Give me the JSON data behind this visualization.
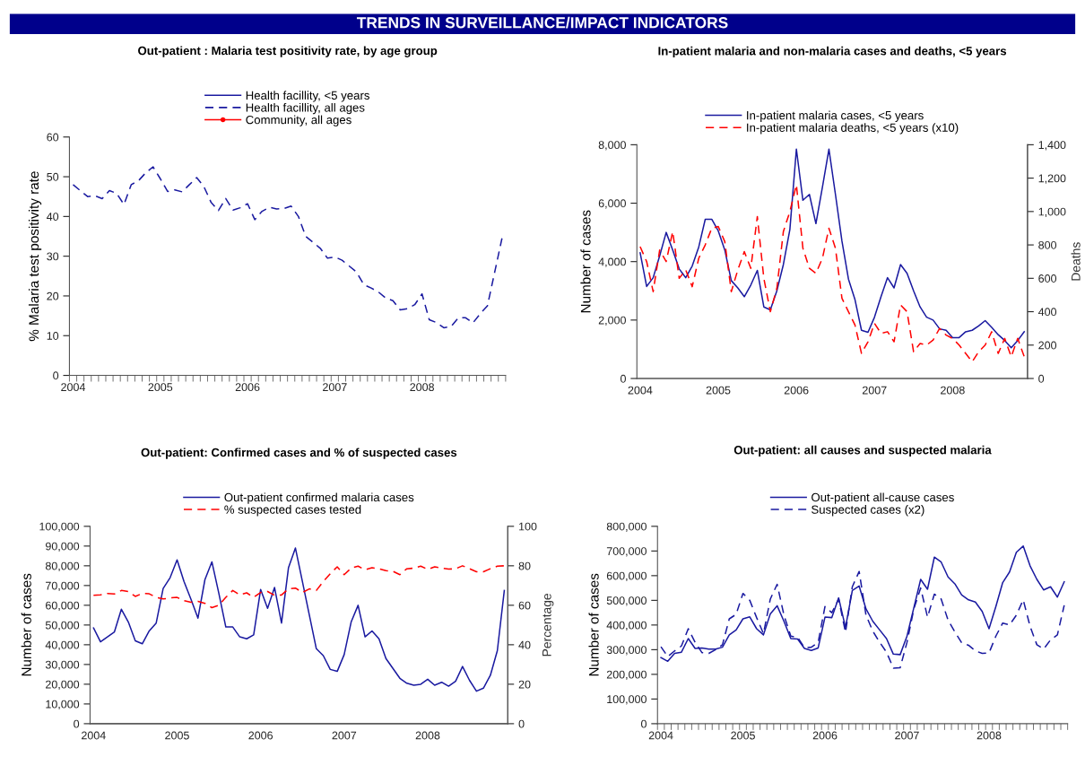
{
  "chart_data": [
    {
      "type": "line",
      "title": "Out-patient : Malaria test positivity rate, by age group",
      "ylabel": "% Malaria test positivity rate",
      "annotations": [
        "TRENDS IN SURVEILLANCE/IMPACT INDICATORS"
      ],
      "categories": [
        "2004",
        null,
        null,
        null,
        null,
        null,
        null,
        null,
        null,
        null,
        null,
        null,
        "2005",
        null,
        null,
        null,
        null,
        null,
        null,
        null,
        null,
        null,
        null,
        null,
        "2006",
        null,
        null,
        null,
        null,
        null,
        null,
        null,
        null,
        null,
        null,
        null,
        "2007",
        null,
        null,
        null,
        null,
        null,
        null,
        null,
        null,
        null,
        null,
        null,
        "2008",
        null,
        null,
        null,
        null,
        null,
        null,
        null,
        null,
        null,
        null,
        null
      ],
      "ylim": [
        0,
        60
      ],
      "yticks": [
        0,
        10,
        20,
        30,
        40,
        50,
        60
      ],
      "legend": "top",
      "series": [
        {
          "name": "Health facillity, <5 years",
          "color": "#1a1aa0",
          "line_style": "solid",
          "values": [
            null,
            null,
            null,
            null,
            null,
            null,
            null,
            null,
            null,
            null,
            null,
            null,
            null,
            null,
            null,
            null,
            null,
            null,
            null,
            null,
            null,
            null,
            null,
            null,
            null,
            null,
            null,
            null,
            null,
            null,
            null,
            null,
            null,
            null,
            null,
            null,
            null,
            null,
            null,
            null,
            null,
            null,
            null,
            null,
            null,
            null,
            null,
            null,
            null,
            null,
            null,
            null,
            null,
            null,
            null,
            null,
            null,
            null,
            null,
            null
          ]
        },
        {
          "name": "Health facillity, all ages",
          "color": "#1a1aa0",
          "line_style": "dashed",
          "values": [
            48,
            46.5,
            45,
            45.2,
            44.5,
            46.5,
            45.8,
            43,
            48,
            49,
            51,
            52.5,
            49.5,
            46.3,
            46.7,
            46.2,
            48,
            49.8,
            47.5,
            43.5,
            41.5,
            44.5,
            41.6,
            42.2,
            43.2,
            39.2,
            41.3,
            42.3,
            41.9,
            42,
            42.6,
            40,
            35,
            33.5,
            32,
            29.5,
            29.8,
            29,
            27.5,
            26,
            22.8,
            22,
            21,
            19.5,
            18.8,
            16.5,
            16.8,
            17.8,
            20.5,
            14,
            13.3,
            12,
            12.3,
            14.5,
            14.5,
            13.2,
            15.5,
            17.5,
            26,
            34.5
          ]
        },
        {
          "name": "Community, all ages",
          "color": "#ff0000",
          "line_style": "solid",
          "marker": "circle",
          "values": [
            null,
            null,
            null,
            null,
            null,
            null,
            null,
            null,
            null,
            null,
            null,
            null,
            null,
            null,
            null,
            null,
            null,
            null,
            null,
            null,
            null,
            null,
            null,
            null,
            null,
            null,
            null,
            null,
            null,
            null,
            null,
            null,
            null,
            null,
            null,
            null,
            null,
            null,
            null,
            null,
            null,
            null,
            null,
            null,
            null,
            null,
            null,
            null,
            null,
            null,
            null,
            null,
            null,
            null,
            null,
            null,
            null,
            null,
            null,
            null
          ]
        }
      ]
    },
    {
      "type": "line",
      "title": "In-patient malaria and non-malaria cases and deaths, <5 years",
      "ylabel": "Number of cases",
      "y2label": "Deaths",
      "categories": [
        "2004",
        null,
        null,
        null,
        null,
        null,
        null,
        null,
        null,
        null,
        null,
        null,
        "2005",
        null,
        null,
        null,
        null,
        null,
        null,
        null,
        null,
        null,
        null,
        null,
        "2006",
        null,
        null,
        null,
        null,
        null,
        null,
        null,
        null,
        null,
        null,
        null,
        "2007",
        null,
        null,
        null,
        null,
        null,
        null,
        null,
        null,
        null,
        null,
        null,
        "2008",
        null,
        null,
        null,
        null,
        null,
        null,
        null,
        null,
        null,
        null,
        null
      ],
      "ylim": [
        0,
        8000
      ],
      "yticks": [
        0,
        {
          "value": 2000,
          "label": "2,000"
        },
        {
          "value": 4000,
          "label": "4,000"
        },
        {
          "value": 6000,
          "label": "6,000"
        },
        {
          "value": 8000,
          "label": "8,000"
        }
      ],
      "y2lim": [
        0,
        1400
      ],
      "y2ticks": [
        0,
        200,
        400,
        600,
        800,
        {
          "value": 1000,
          "label": "1,000"
        },
        {
          "value": 1200,
          "label": "1,200"
        },
        {
          "value": 1400,
          "label": "1,400"
        }
      ],
      "legend": "top",
      "series": [
        {
          "name": "In-patient malaria cases, <5 years",
          "color": "#1a1aa0",
          "line_style": "solid",
          "values": [
            4300,
            3150,
            3450,
            4200,
            5000,
            4400,
            3750,
            3450,
            3850,
            4500,
            5450,
            5450,
            5050,
            4400,
            3350,
            3100,
            2800,
            3200,
            3700,
            2450,
            2350,
            3000,
            3900,
            5100,
            7850,
            6100,
            6300,
            5300,
            6550,
            7850,
            6300,
            4700,
            3400,
            2700,
            1650,
            1580,
            2100,
            2800,
            3450,
            3100,
            3900,
            3600,
            3000,
            2450,
            2100,
            2000,
            1700,
            1650,
            1400,
            1400,
            1600,
            1650,
            1800,
            1980,
            1750,
            1500,
            1300,
            1050,
            1300,
            1600
          ]
        },
        {
          "name": "In-patient malaria deaths, <5 years (x10)",
          "color": "#ff0000",
          "line_style": "dashed",
          "axis": "y2",
          "values": [
            790,
            700,
            520,
            770,
            700,
            880,
            600,
            650,
            550,
            720,
            800,
            900,
            910,
            820,
            520,
            650,
            760,
            660,
            970,
            600,
            400,
            540,
            880,
            1000,
            1160,
            780,
            660,
            630,
            720,
            900,
            780,
            480,
            400,
            320,
            150,
            220,
            330,
            270,
            280,
            220,
            440,
            400,
            160,
            210,
            200,
            230,
            300,
            260,
            240,
            200,
            150,
            100,
            160,
            200,
            280,
            150,
            240,
            130,
            240,
            130
          ]
        }
      ]
    },
    {
      "type": "line",
      "title": "Out-patient: Confirmed cases and % of suspected cases",
      "ylabel": "Number of cases",
      "y2label": "Percentage",
      "categories": [
        "2004",
        null,
        null,
        null,
        null,
        null,
        null,
        null,
        null,
        null,
        null,
        null,
        "2005",
        null,
        null,
        null,
        null,
        null,
        null,
        null,
        null,
        null,
        null,
        null,
        "2006",
        null,
        null,
        null,
        null,
        null,
        null,
        null,
        null,
        null,
        null,
        null,
        "2007",
        null,
        null,
        null,
        null,
        null,
        null,
        null,
        null,
        null,
        null,
        null,
        "2008",
        null,
        null,
        null,
        null,
        null,
        null,
        null,
        null,
        null,
        null,
        null
      ],
      "ylim": [
        0,
        100000
      ],
      "yticks": [
        0,
        {
          "value": 10000,
          "label": "10,000"
        },
        {
          "value": 20000,
          "label": "20,000"
        },
        {
          "value": 30000,
          "label": "30,000"
        },
        {
          "value": 40000,
          "label": "40,000"
        },
        {
          "value": 50000,
          "label": "50,000"
        },
        {
          "value": 60000,
          "label": "60,000"
        },
        {
          "value": 70000,
          "label": "70,000"
        },
        {
          "value": 80000,
          "label": "80,000"
        },
        {
          "value": 90000,
          "label": "90,000"
        },
        {
          "value": 100000,
          "label": "100,000"
        }
      ],
      "y2lim": [
        0,
        100
      ],
      "y2ticks": [
        0,
        20,
        40,
        60,
        80,
        100
      ],
      "legend": "top",
      "series": [
        {
          "name": "Out-patient confirmed malaria cases",
          "color": "#1a1aa0",
          "line_style": "solid",
          "values": [
            48500,
            41500,
            44000,
            46500,
            58000,
            51500,
            42000,
            40500,
            47000,
            51000,
            68500,
            74000,
            83000,
            72000,
            63000,
            53500,
            73000,
            82000,
            66000,
            49000,
            49000,
            44000,
            43000,
            45000,
            68000,
            58500,
            69000,
            51000,
            79000,
            89000,
            72000,
            55000,
            38000,
            34500,
            27500,
            26500,
            35000,
            51500,
            60000,
            44000,
            47000,
            43000,
            33000,
            28000,
            23000,
            20500,
            19500,
            20000,
            22500,
            19500,
            21000,
            19000,
            21500,
            29000,
            22000,
            16500,
            18000,
            24500,
            37000,
            67500
          ]
        },
        {
          "name": "% suspected cases tested",
          "color": "#ff0000",
          "line_style": "dashed",
          "axis": "y2",
          "values": [
            65,
            65.3,
            66,
            65.7,
            67.5,
            67,
            64.5,
            66,
            65.8,
            64,
            63.2,
            63.7,
            64,
            62.3,
            61.5,
            62,
            61,
            58.8,
            60,
            64,
            67.5,
            65.3,
            66.3,
            64,
            66.5,
            67,
            65,
            65.2,
            68.3,
            68.7,
            66.5,
            68.3,
            67.5,
            72,
            76,
            79.5,
            75.5,
            78.8,
            79.8,
            78,
            79,
            78.5,
            77.5,
            77.2,
            75.5,
            78.5,
            78.8,
            79.8,
            78.2,
            79.5,
            78.8,
            78.3,
            78.5,
            80,
            78.5,
            77,
            77,
            78.5,
            79.8,
            80
          ]
        }
      ]
    },
    {
      "type": "line",
      "title": "Out-patient: all causes and suspected malaria",
      "ylabel": "Number of cases",
      "categories": [
        "2004",
        null,
        null,
        null,
        null,
        null,
        null,
        null,
        null,
        null,
        null,
        null,
        "2005",
        null,
        null,
        null,
        null,
        null,
        null,
        null,
        null,
        null,
        null,
        null,
        "2006",
        null,
        null,
        null,
        null,
        null,
        null,
        null,
        null,
        null,
        null,
        null,
        "2007",
        null,
        null,
        null,
        null,
        null,
        null,
        null,
        null,
        null,
        null,
        null,
        "2008",
        null,
        null,
        null,
        null,
        null,
        null,
        null,
        null,
        null,
        null,
        null
      ],
      "ylim": [
        0,
        800000
      ],
      "yticks": [
        0,
        {
          "value": 100000,
          "label": "100,000"
        },
        {
          "value": 200000,
          "label": "200,000"
        },
        {
          "value": 300000,
          "label": "300,000"
        },
        {
          "value": 400000,
          "label": "400,000"
        },
        {
          "value": 500000,
          "label": "500,000"
        },
        {
          "value": 600000,
          "label": "600,000"
        },
        {
          "value": 700000,
          "label": "700,000"
        },
        {
          "value": 800000,
          "label": "800,000"
        }
      ],
      "legend": "top",
      "series": [
        {
          "name": "Out-patient all-cause cases",
          "color": "#1a1aa0",
          "line_style": "solid",
          "values": [
            268000,
            253000,
            285000,
            290000,
            345000,
            305000,
            307000,
            302000,
            302000,
            310000,
            360000,
            380000,
            425000,
            433000,
            385000,
            360000,
            445000,
            478000,
            415000,
            345000,
            343000,
            305000,
            297000,
            307000,
            432000,
            430000,
            510000,
            390000,
            540000,
            558000,
            465000,
            415000,
            380000,
            345000,
            282000,
            280000,
            355000,
            470000,
            585000,
            545000,
            675000,
            655000,
            595000,
            567000,
            522000,
            502000,
            493000,
            455000,
            385000,
            475000,
            572000,
            615000,
            695000,
            720000,
            640000,
            585000,
            542000,
            555000,
            513000,
            575000
          ]
        },
        {
          "name": "Suspected cases (x2)",
          "color": "#1a1aa0",
          "line_style": "dashed",
          "values": [
            312000,
            272000,
            295000,
            315000,
            385000,
            330000,
            288000,
            285000,
            300000,
            320000,
            425000,
            443000,
            528000,
            500000,
            430000,
            365000,
            505000,
            565000,
            440000,
            355000,
            350000,
            308000,
            310000,
            330000,
            475000,
            450000,
            505000,
            370000,
            555000,
            617000,
            440000,
            375000,
            330000,
            290000,
            225000,
            227000,
            330000,
            465000,
            550000,
            432000,
            525000,
            505000,
            420000,
            372000,
            328000,
            318000,
            295000,
            285000,
            287000,
            355000,
            408000,
            400000,
            440000,
            502000,
            395000,
            320000,
            303000,
            340000,
            360000,
            480000
          ]
        }
      ]
    }
  ]
}
